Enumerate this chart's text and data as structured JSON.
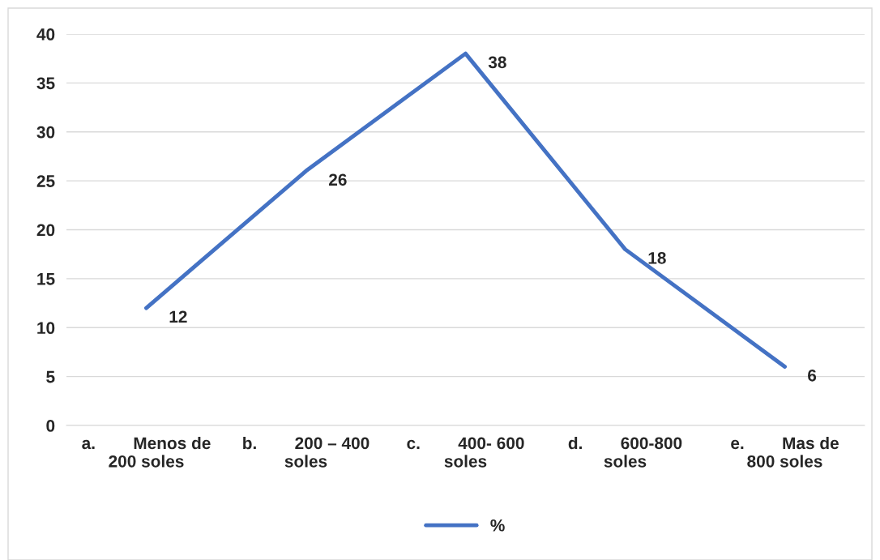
{
  "chart_data": {
    "type": "line",
    "categories": [
      "a.        Menos de\n200 soles",
      "b.        200 – 400\nsoles",
      "c.        400- 600\nsoles",
      "d.        600-800\nsoles",
      "e.        Mas de\n800 soles"
    ],
    "series": [
      {
        "name": "%",
        "color": "#4472c4",
        "values": [
          12,
          26,
          38,
          18,
          6
        ]
      }
    ],
    "ylim": [
      0,
      40
    ],
    "yticks": [
      0,
      5,
      10,
      15,
      20,
      25,
      30,
      35,
      40
    ],
    "grid": "y",
    "legend": "bottom",
    "data_labels": true,
    "marker": "none",
    "line_style": "solid"
  }
}
